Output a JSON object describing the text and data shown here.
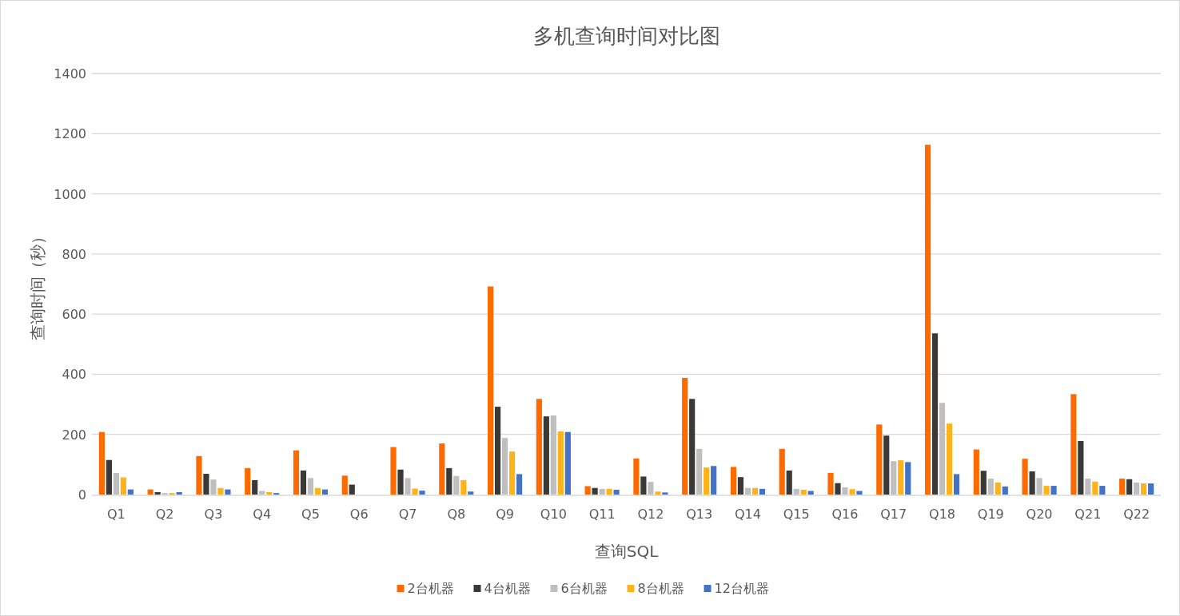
{
  "chart_data": {
    "type": "bar",
    "title": "多机查询时间对比图",
    "xlabel": "查询SQL",
    "ylabel": "查询时间（秒）",
    "categories": [
      "Q1",
      "Q2",
      "Q3",
      "Q4",
      "Q5",
      "Q6",
      "Q7",
      "Q8",
      "Q9",
      "Q10",
      "Q11",
      "Q12",
      "Q13",
      "Q14",
      "Q15",
      "Q16",
      "Q17",
      "Q18",
      "Q19",
      "Q20",
      "Q21",
      "Q22"
    ],
    "series": [
      {
        "name": "2台机器",
        "color": "#ff6a00",
        "values": [
          208,
          17,
          128,
          88,
          147,
          63,
          158,
          170,
          692,
          318,
          28,
          120,
          388,
          92,
          152,
          72,
          233,
          1163,
          150,
          119,
          334,
          53
        ]
      },
      {
        "name": "4台机器",
        "color": "#3a3938",
        "values": [
          115,
          8,
          69,
          48,
          80,
          33,
          83,
          88,
          292,
          260,
          22,
          60,
          318,
          58,
          80,
          38,
          196,
          536,
          79,
          77,
          178,
          51
        ]
      },
      {
        "name": "6台机器",
        "color": "#bfbfbf",
        "values": [
          72,
          5,
          50,
          12,
          55,
          0,
          55,
          62,
          188,
          263,
          19,
          42,
          152,
          22,
          19,
          24,
          111,
          305,
          53,
          55,
          53,
          40
        ]
      },
      {
        "name": "8台机器",
        "color": "#ffb31a",
        "values": [
          57,
          5,
          22,
          8,
          22,
          0,
          20,
          48,
          143,
          210,
          19,
          10,
          90,
          22,
          16,
          18,
          114,
          236,
          40,
          29,
          43,
          37
        ]
      },
      {
        "name": "12台机器",
        "color": "#4472c4",
        "values": [
          17,
          8,
          17,
          5,
          17,
          0,
          13,
          10,
          68,
          208,
          16,
          7,
          95,
          19,
          12,
          12,
          108,
          68,
          27,
          29,
          29,
          37
        ]
      }
    ],
    "ylim": [
      0,
      1400
    ],
    "yticks": [
      0,
      200,
      400,
      600,
      800,
      1000,
      1200,
      1400
    ],
    "grid": "y",
    "legend": "bottom"
  }
}
